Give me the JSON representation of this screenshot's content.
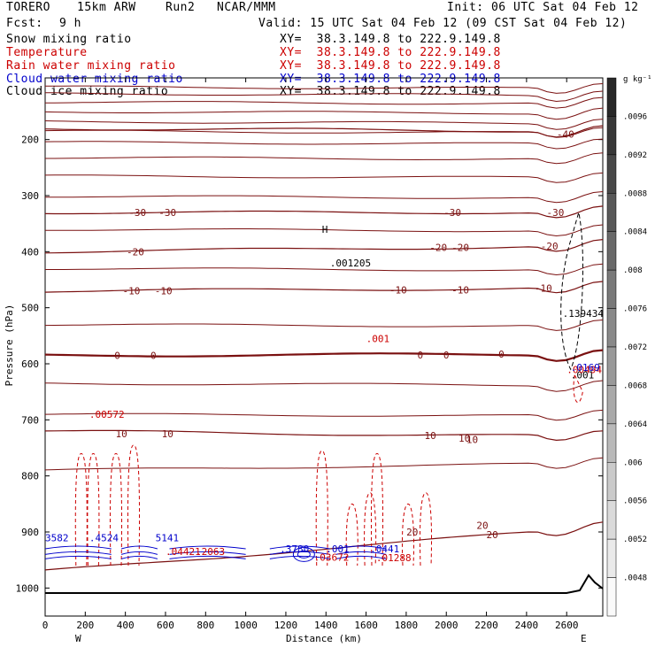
{
  "header": {
    "model": "TORERO",
    "resolution": "15km ARW",
    "run": "Run2",
    "org": "NCAR/MMM",
    "init": "Init: 06 UTC Sat 04 Feb 12",
    "fcst_label": "Fcst:",
    "fcst_value": "9 h",
    "valid": "Valid: 15 UTC Sat 04 Feb 12 (09 CST Sat 04 Feb 12)"
  },
  "fields": [
    {
      "name": "Snow mixing ratio",
      "color": "#000000",
      "xy": "XY=  38.3.149.8 to 222.9.149.8",
      "xy_color": "#000000"
    },
    {
      "name": "Temperature",
      "color": "#cc0000",
      "xy": "XY=  38.3.149.8 to 222.9.149.8",
      "xy_color": "#cc0000"
    },
    {
      "name": "Rain water mixing ratio",
      "color": "#cc0000",
      "xy": "XY=  38.3.149.8 to 222.9.149.8",
      "xy_color": "#cc0000"
    },
    {
      "name": "Cloud water mixing ratio",
      "color": "#0000cc",
      "xy": "XY=  38.3.149.8 to 222.9.149.8",
      "xy_color": "#0000cc"
    },
    {
      "name": "Cloud ice mixing ratio",
      "color": "#000000",
      "xy": "XY=  38.3.149.8 to 222.9.149.8",
      "xy_color": "#000000"
    }
  ],
  "chart_data": {
    "type": "contour cross-section",
    "xlabel": "Distance (km)",
    "ylabel": "Pressure (hPa)",
    "xlim": [
      0,
      2780
    ],
    "ylim": [
      1050,
      90
    ],
    "x_ticks": [
      0,
      200,
      400,
      600,
      800,
      1000,
      1200,
      1400,
      1600,
      1800,
      2000,
      2200,
      2400,
      2600
    ],
    "y_ticks": [
      200,
      300,
      400,
      500,
      600,
      700,
      800,
      900,
      1000
    ],
    "x_end_labels": {
      "left": "W",
      "right": "E"
    },
    "colorbar": {
      "unit": "g kg⁻¹",
      "labels": [
        ".0096",
        ".0092",
        ".0088",
        ".0084",
        ".008",
        ".0076",
        ".0072",
        ".0068",
        ".0064",
        ".006",
        ".0056",
        ".0052",
        ".0048"
      ]
    },
    "temperature_contours": [
      {
        "value": -40,
        "pressure_left": 180,
        "pressure_right": 185,
        "label": "-40"
      },
      {
        "value": -30,
        "pressure_left": 330,
        "pressure_right": 330,
        "label": "-30"
      },
      {
        "value": -20,
        "pressure_left": 400,
        "pressure_right": 390,
        "label": "-20"
      },
      {
        "value": -10,
        "pressure_left": 470,
        "pressure_right": 465,
        "label": "-10"
      },
      {
        "value": 0,
        "pressure_left": 585,
        "pressure_right": 583,
        "label": "0"
      },
      {
        "value": 10,
        "pressure_left": 720,
        "pressure_right": 730,
        "label": "10"
      },
      {
        "value": 20,
        "pressure_left": 970,
        "pressure_right": 890,
        "label": "20"
      }
    ],
    "text_labels": [
      {
        "text": "-40",
        "color": "#7a1010"
      },
      {
        "text": "-30",
        "color": "#7a1010"
      },
      {
        "text": "-20",
        "color": "#7a1010"
      },
      {
        "text": "-10",
        "color": "#7a1010"
      },
      {
        "text": "0",
        "color": "#7a1010"
      },
      {
        "text": "10",
        "color": "#7a1010"
      },
      {
        "text": "20",
        "color": "#7a1010"
      },
      {
        "text": "H",
        "color": "#000000"
      },
      {
        "text": ".001205",
        "color": "#000000"
      },
      {
        "text": ".001",
        "color": "#000000"
      },
      {
        "text": ".139434",
        "color": "#000000"
      },
      {
        "text": ".001",
        "color": "#cc0000"
      },
      {
        "text": ".00494",
        "color": "#cc0000"
      },
      {
        "text": ".0169",
        "color": "#0000cc"
      },
      {
        "text": "3582",
        "color": "#0000cc"
      },
      {
        "text": ".4524",
        "color": "#0000cc"
      },
      {
        "text": "5141",
        "color": "#0000cc"
      },
      {
        "text": ".04421",
        "color": "#cc0000"
      },
      {
        "text": ".2063",
        "color": "#cc0000"
      },
      {
        "text": ".00572",
        "color": "#cc0000"
      },
      {
        "text": ".3780",
        "color": "#0000cc"
      },
      {
        "text": ".03672",
        "color": "#cc0000"
      },
      {
        "text": ".001",
        "color": "#0000cc"
      },
      {
        "text": ".0441",
        "color": "#0000cc"
      },
      {
        "text": ".01288",
        "color": "#cc0000"
      }
    ]
  }
}
